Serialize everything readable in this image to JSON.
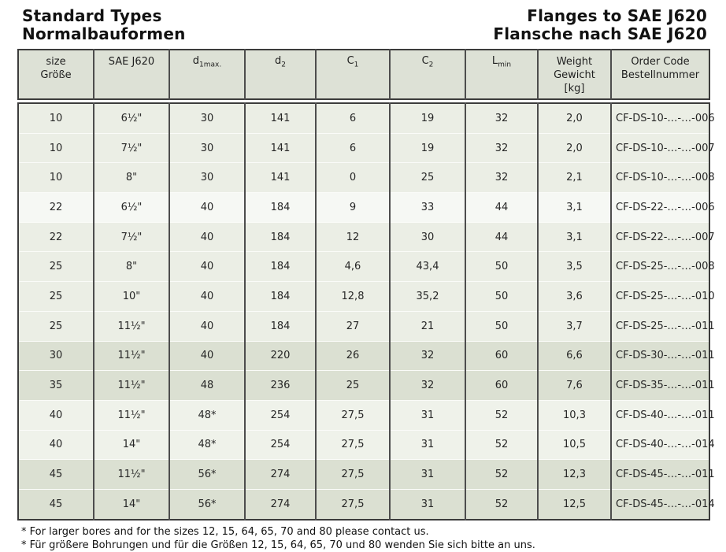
{
  "header": {
    "left_line1": "Standard Types",
    "left_line2": "Normalbauformen",
    "right_line1": "Flanges to SAE J620",
    "right_line2": "Flansche nach SAE J620"
  },
  "table": {
    "columns": [
      {
        "line1": "size",
        "line2": "Größe"
      },
      {
        "line1": "SAE J620"
      },
      {
        "base": "d",
        "sub": "1max."
      },
      {
        "base": "d",
        "sub": "2"
      },
      {
        "base": "C",
        "sub": "1"
      },
      {
        "base": "C",
        "sub": "2"
      },
      {
        "base": "L",
        "sub": "min"
      },
      {
        "line1": "Weight",
        "line2": "Gewicht",
        "line3": "[kg]"
      },
      {
        "line1": "Order Code",
        "line2": "Bestellnummer"
      }
    ],
    "rows": [
      {
        "size": "10",
        "sae": "6½\"",
        "d1": "30",
        "d2": "141",
        "c1": "6",
        "c2": "19",
        "lmin": "32",
        "weight": "2,0",
        "order": "CF-DS-10-…-…-006",
        "shade": "a"
      },
      {
        "size": "10",
        "sae": "7½\"",
        "d1": "30",
        "d2": "141",
        "c1": "6",
        "c2": "19",
        "lmin": "32",
        "weight": "2,0",
        "order": "CF-DS-10-…-…-007",
        "shade": "a"
      },
      {
        "size": "10",
        "sae": "8\"",
        "d1": "30",
        "d2": "141",
        "c1": "0",
        "c2": "25",
        "lmin": "32",
        "weight": "2,1",
        "order": "CF-DS-10-…-…-008",
        "shade": "a"
      },
      {
        "size": "22",
        "sae": "6½\"",
        "d1": "40",
        "d2": "184",
        "c1": "9",
        "c2": "33",
        "lmin": "44",
        "weight": "3,1",
        "order": "CF-DS-22-…-…-006",
        "shade": "b"
      },
      {
        "size": "22",
        "sae": "7½\"",
        "d1": "40",
        "d2": "184",
        "c1": "12",
        "c2": "30",
        "lmin": "44",
        "weight": "3,1",
        "order": "CF-DS-22-…-…-007",
        "shade": "a"
      },
      {
        "size": "25",
        "sae": "8\"",
        "d1": "40",
        "d2": "184",
        "c1": "4,6",
        "c2": "43,4",
        "lmin": "50",
        "weight": "3,5",
        "order": "CF-DS-25-…-…-008",
        "shade": "a"
      },
      {
        "size": "25",
        "sae": "10\"",
        "d1": "40",
        "d2": "184",
        "c1": "12,8",
        "c2": "35,2",
        "lmin": "50",
        "weight": "3,6",
        "order": "CF-DS-25-…-…-010",
        "shade": "a"
      },
      {
        "size": "25",
        "sae": "11½\"",
        "d1": "40",
        "d2": "184",
        "c1": "27",
        "c2": "21",
        "lmin": "50",
        "weight": "3,7",
        "order": "CF-DS-25-…-…-011",
        "shade": "a"
      },
      {
        "size": "30",
        "sae": "11½\"",
        "d1": "40",
        "d2": "220",
        "c1": "26",
        "c2": "32",
        "lmin": "60",
        "weight": "6,6",
        "order": "CF-DS-30-…-…-011",
        "shade": "c"
      },
      {
        "size": "35",
        "sae": "11½\"",
        "d1": "48",
        "d2": "236",
        "c1": "25",
        "c2": "32",
        "lmin": "60",
        "weight": "7,6",
        "order": "CF-DS-35-…-…-011",
        "shade": "c"
      },
      {
        "size": "40",
        "sae": "11½\"",
        "d1": "48*",
        "d2": "254",
        "c1": "27,5",
        "c2": "31",
        "lmin": "52",
        "weight": "10,3",
        "order": "CF-DS-40-…-…-011",
        "shade": "a2"
      },
      {
        "size": "40",
        "sae": "14\"",
        "d1": "48*",
        "d2": "254",
        "c1": "27,5",
        "c2": "31",
        "lmin": "52",
        "weight": "10,5",
        "order": "CF-DS-40-…-…-014",
        "shade": "a2"
      },
      {
        "size": "45",
        "sae": "11½\"",
        "d1": "56*",
        "d2": "274",
        "c1": "27,5",
        "c2": "31",
        "lmin": "52",
        "weight": "12,3",
        "order": "CF-DS-45-…-…-011",
        "shade": "c"
      },
      {
        "size": "45",
        "sae": "14\"",
        "d1": "56*",
        "d2": "274",
        "c1": "27,5",
        "c2": "31",
        "lmin": "52",
        "weight": "12,5",
        "order": "CF-DS-45-…-…-014",
        "shade": "c"
      }
    ]
  },
  "footnotes": [
    "* For larger bores and for the sizes 12, 15, 64, 65, 70 and 80 please contact us.",
    "* Für größere Bohrungen und für die Größen 12, 15, 64, 65, 70 und 80 wenden Sie sich bitte an uns."
  ],
  "colors": {
    "header_cell_bg": "#dde1d6",
    "row_light": "#ebeee5",
    "row_lighter": "#f6f8f4",
    "row_medium": "#dbe0d2",
    "border_dark": "#3c3c3c",
    "border_column": "#4d4d4d",
    "text": "#262626"
  }
}
